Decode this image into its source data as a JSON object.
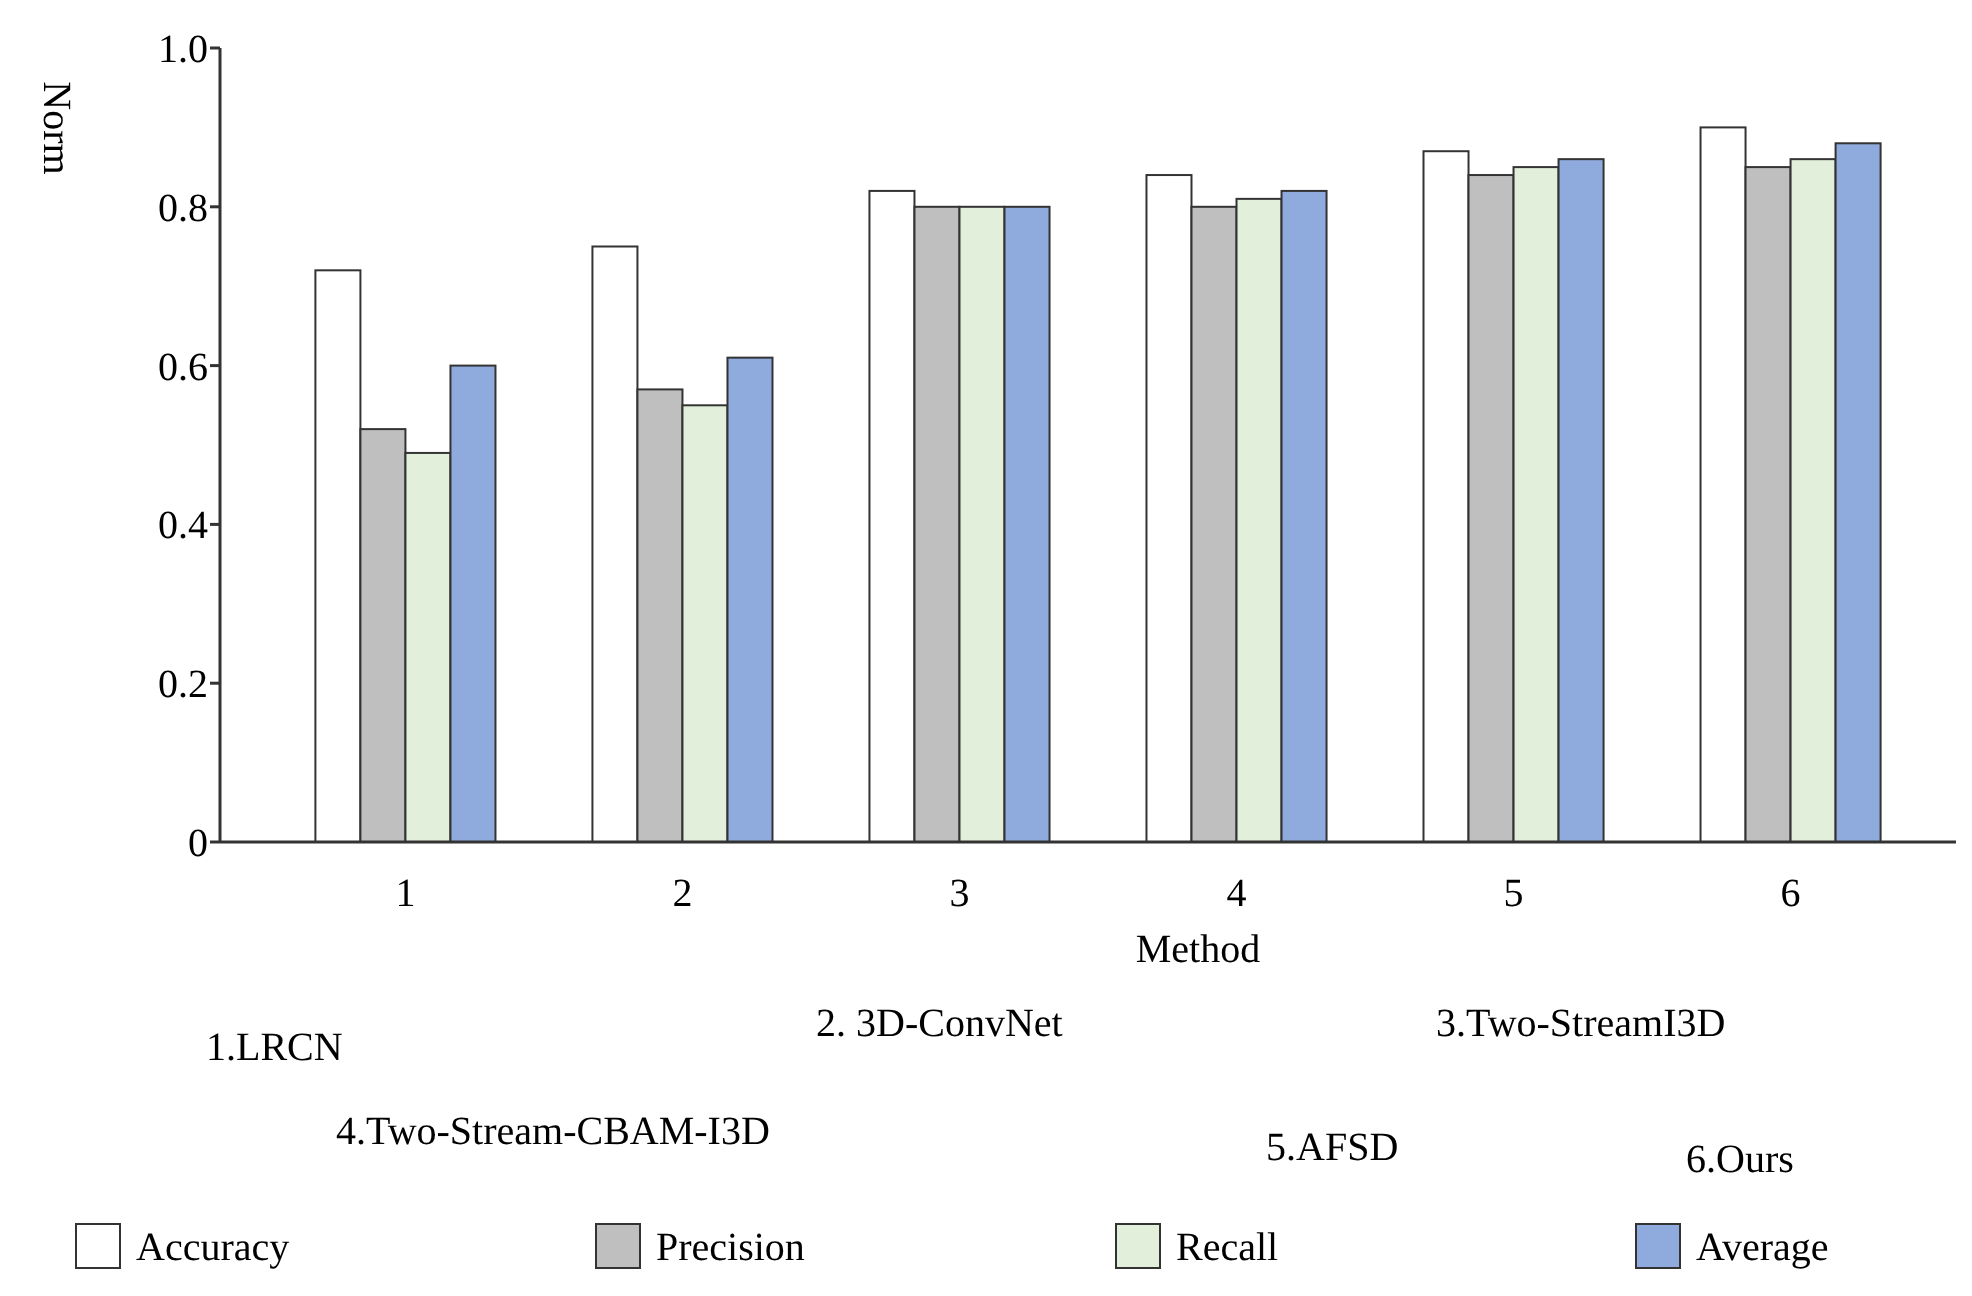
{
  "chart_data": {
    "type": "bar",
    "xlabel": "Method",
    "ylabel": "Norm",
    "categories": [
      "1",
      "2",
      "3",
      "4",
      "5",
      "6"
    ],
    "series": [
      {
        "name": "Accuracy",
        "color": "#ffffff",
        "values": [
          0.72,
          0.75,
          0.82,
          0.84,
          0.87,
          0.9
        ]
      },
      {
        "name": "Precision",
        "color": "#bfbfbf",
        "values": [
          0.52,
          0.57,
          0.8,
          0.8,
          0.84,
          0.85
        ]
      },
      {
        "name": "Recall",
        "color": "#e2efda",
        "values": [
          0.49,
          0.55,
          0.8,
          0.81,
          0.85,
          0.86
        ]
      },
      {
        "name": "Average",
        "color": "#8faadc",
        "values": [
          0.6,
          0.61,
          0.8,
          0.82,
          0.86,
          0.88
        ]
      }
    ],
    "ylim": [
      0,
      1.0
    ],
    "yticks": [
      0,
      0.2,
      0.4,
      0.6,
      0.8,
      {
        "value": 1.0,
        "label": "1.0"
      }
    ],
    "annotations": [
      "1.LRCN",
      "2. 3D-ConvNet",
      "3.Two-StreamI3D",
      "4.Two-Stream-CBAM-I3D",
      "5.AFSD",
      "6.Ours"
    ],
    "legend": "bottom",
    "grid": false
  }
}
